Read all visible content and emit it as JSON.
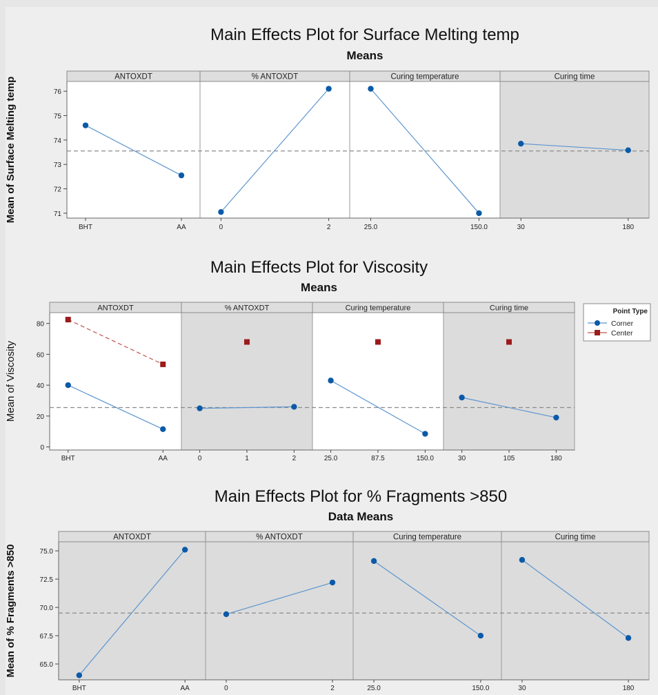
{
  "chart_data": [
    {
      "type": "line",
      "title": "Main Effects Plot for Surface Melting temp",
      "subtitle": "Means",
      "ylabel": "Mean of Surface Melting temp",
      "ylim": [
        70.8,
        76.4
      ],
      "yticks": [
        "71",
        "72",
        "73",
        "74",
        "75",
        "76"
      ],
      "yticks_values": [
        71,
        72,
        73,
        74,
        75,
        76
      ],
      "overall_mean": 73.55,
      "panels": [
        {
          "name": "ANTOXDT",
          "shaded": false,
          "categories": [
            "BHT",
            "AA"
          ],
          "corner": [
            74.6,
            72.55
          ]
        },
        {
          "name": "% ANTOXDT",
          "shaded": false,
          "categories": [
            "0",
            "2"
          ],
          "corner": [
            71.05,
            76.1
          ]
        },
        {
          "name": "Curing temperature",
          "shaded": false,
          "categories": [
            "25.0",
            "150.0"
          ],
          "corner": [
            76.1,
            71.0
          ]
        },
        {
          "name": "Curing time",
          "shaded": true,
          "categories": [
            "30",
            "180"
          ],
          "corner": [
            73.85,
            73.58
          ]
        }
      ]
    },
    {
      "type": "line",
      "title": "Main Effects Plot for Viscosity",
      "subtitle": "Means",
      "ylabel": "Mean of Viscosity",
      "ylim": [
        -2,
        87
      ],
      "yticks": [
        "0",
        "20",
        "40",
        "60",
        "80"
      ],
      "yticks_values": [
        0,
        20,
        40,
        60,
        80
      ],
      "overall_mean": 25.5,
      "legend": {
        "title": "Point Type",
        "entries": [
          {
            "name": "Corner",
            "color": "#0b5aa8"
          },
          {
            "name": "Center",
            "color": "#9b1b1b"
          }
        ]
      },
      "panels": [
        {
          "name": "ANTOXDT",
          "shaded": false,
          "categories": [
            "BHT",
            "AA"
          ],
          "corner": [
            40.0,
            11.5
          ],
          "center": [
            82.5,
            53.5
          ]
        },
        {
          "name": "% ANTOXDT",
          "shaded": true,
          "categories": [
            "0",
            "1",
            "2"
          ],
          "corner": [
            25.0,
            null,
            26.0
          ],
          "center": [
            null,
            68.0,
            null
          ]
        },
        {
          "name": "Curing temperature",
          "shaded": false,
          "categories": [
            "25.0",
            "87.5",
            "150.0"
          ],
          "corner": [
            43.0,
            null,
            8.5
          ],
          "center": [
            null,
            68.0,
            null
          ]
        },
        {
          "name": "Curing time",
          "shaded": true,
          "categories": [
            "30",
            "105",
            "180"
          ],
          "corner": [
            32.0,
            null,
            19.0
          ],
          "center": [
            null,
            68.0,
            null
          ]
        }
      ]
    },
    {
      "type": "line",
      "title": "Main Effects Plot for % Fragments >850",
      "subtitle": "Data Means",
      "ylabel": "Mean of % Fragments >850",
      "ylim": [
        63.6,
        75.8
      ],
      "yticks": [
        "65.0",
        "67.5",
        "70.0",
        "72.5",
        "75.0"
      ],
      "yticks_values": [
        65.0,
        67.5,
        70.0,
        72.5,
        75.0
      ],
      "overall_mean": 69.5,
      "panels": [
        {
          "name": "ANTOXDT",
          "shaded": true,
          "categories": [
            "BHT",
            "AA"
          ],
          "corner": [
            64.0,
            75.1
          ]
        },
        {
          "name": "% ANTOXDT",
          "shaded": true,
          "categories": [
            "0",
            "2"
          ],
          "corner": [
            69.4,
            72.2
          ]
        },
        {
          "name": "Curing temperature",
          "shaded": true,
          "categories": [
            "25.0",
            "150.0"
          ],
          "corner": [
            74.1,
            67.5
          ]
        },
        {
          "name": "Curing time",
          "shaded": true,
          "categories": [
            "30",
            "180"
          ],
          "corner": [
            74.2,
            67.3
          ]
        }
      ]
    }
  ],
  "colors": {
    "corner": "#0b5aa8",
    "corner_line": "#5b95cf",
    "center": "#9b1b1b",
    "center_line": "#c0504d",
    "panel_white": "#ffffff",
    "panel_shaded": "#dcdcdc",
    "header": "#dedede",
    "mean_line": "#8a8a8a"
  }
}
